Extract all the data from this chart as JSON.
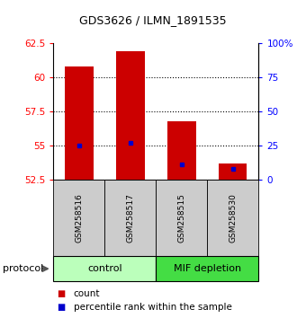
{
  "title": "GDS3626 / ILMN_1891535",
  "samples": [
    "GSM258516",
    "GSM258517",
    "GSM258515",
    "GSM258530"
  ],
  "bar_tops": [
    60.8,
    61.9,
    56.8,
    53.7
  ],
  "bar_bottom": 52.5,
  "percentile_values": [
    55.0,
    55.2,
    53.6,
    53.3
  ],
  "bar_color": "#cc0000",
  "percentile_color": "#0000cc",
  "ylim_left": [
    52.5,
    62.5
  ],
  "yticks_left": [
    52.5,
    55.0,
    57.5,
    60.0,
    62.5
  ],
  "yticks_right": [
    0,
    25,
    50,
    75,
    100
  ],
  "ytick_labels_left": [
    "52.5",
    "55",
    "57.5",
    "60",
    "62.5"
  ],
  "ytick_labels_right": [
    "0",
    "25",
    "50",
    "75",
    "100%"
  ],
  "dotted_vals": [
    55.0,
    57.5,
    60.0
  ],
  "groups": [
    {
      "label": "control",
      "indices": [
        0,
        1
      ],
      "color": "#bbffbb"
    },
    {
      "label": "MIF depletion",
      "indices": [
        2,
        3
      ],
      "color": "#44dd44"
    }
  ],
  "protocol_label": "protocol",
  "legend_count_label": "count",
  "legend_percentile_label": "percentile rank within the sample",
  "bar_width": 0.55,
  "sample_box_color": "#cccccc",
  "title_fontsize": 9,
  "tick_fontsize": 7.5,
  "sample_fontsize": 6.5,
  "group_fontsize": 8,
  "legend_fontsize": 7.5,
  "protocol_fontsize": 8
}
